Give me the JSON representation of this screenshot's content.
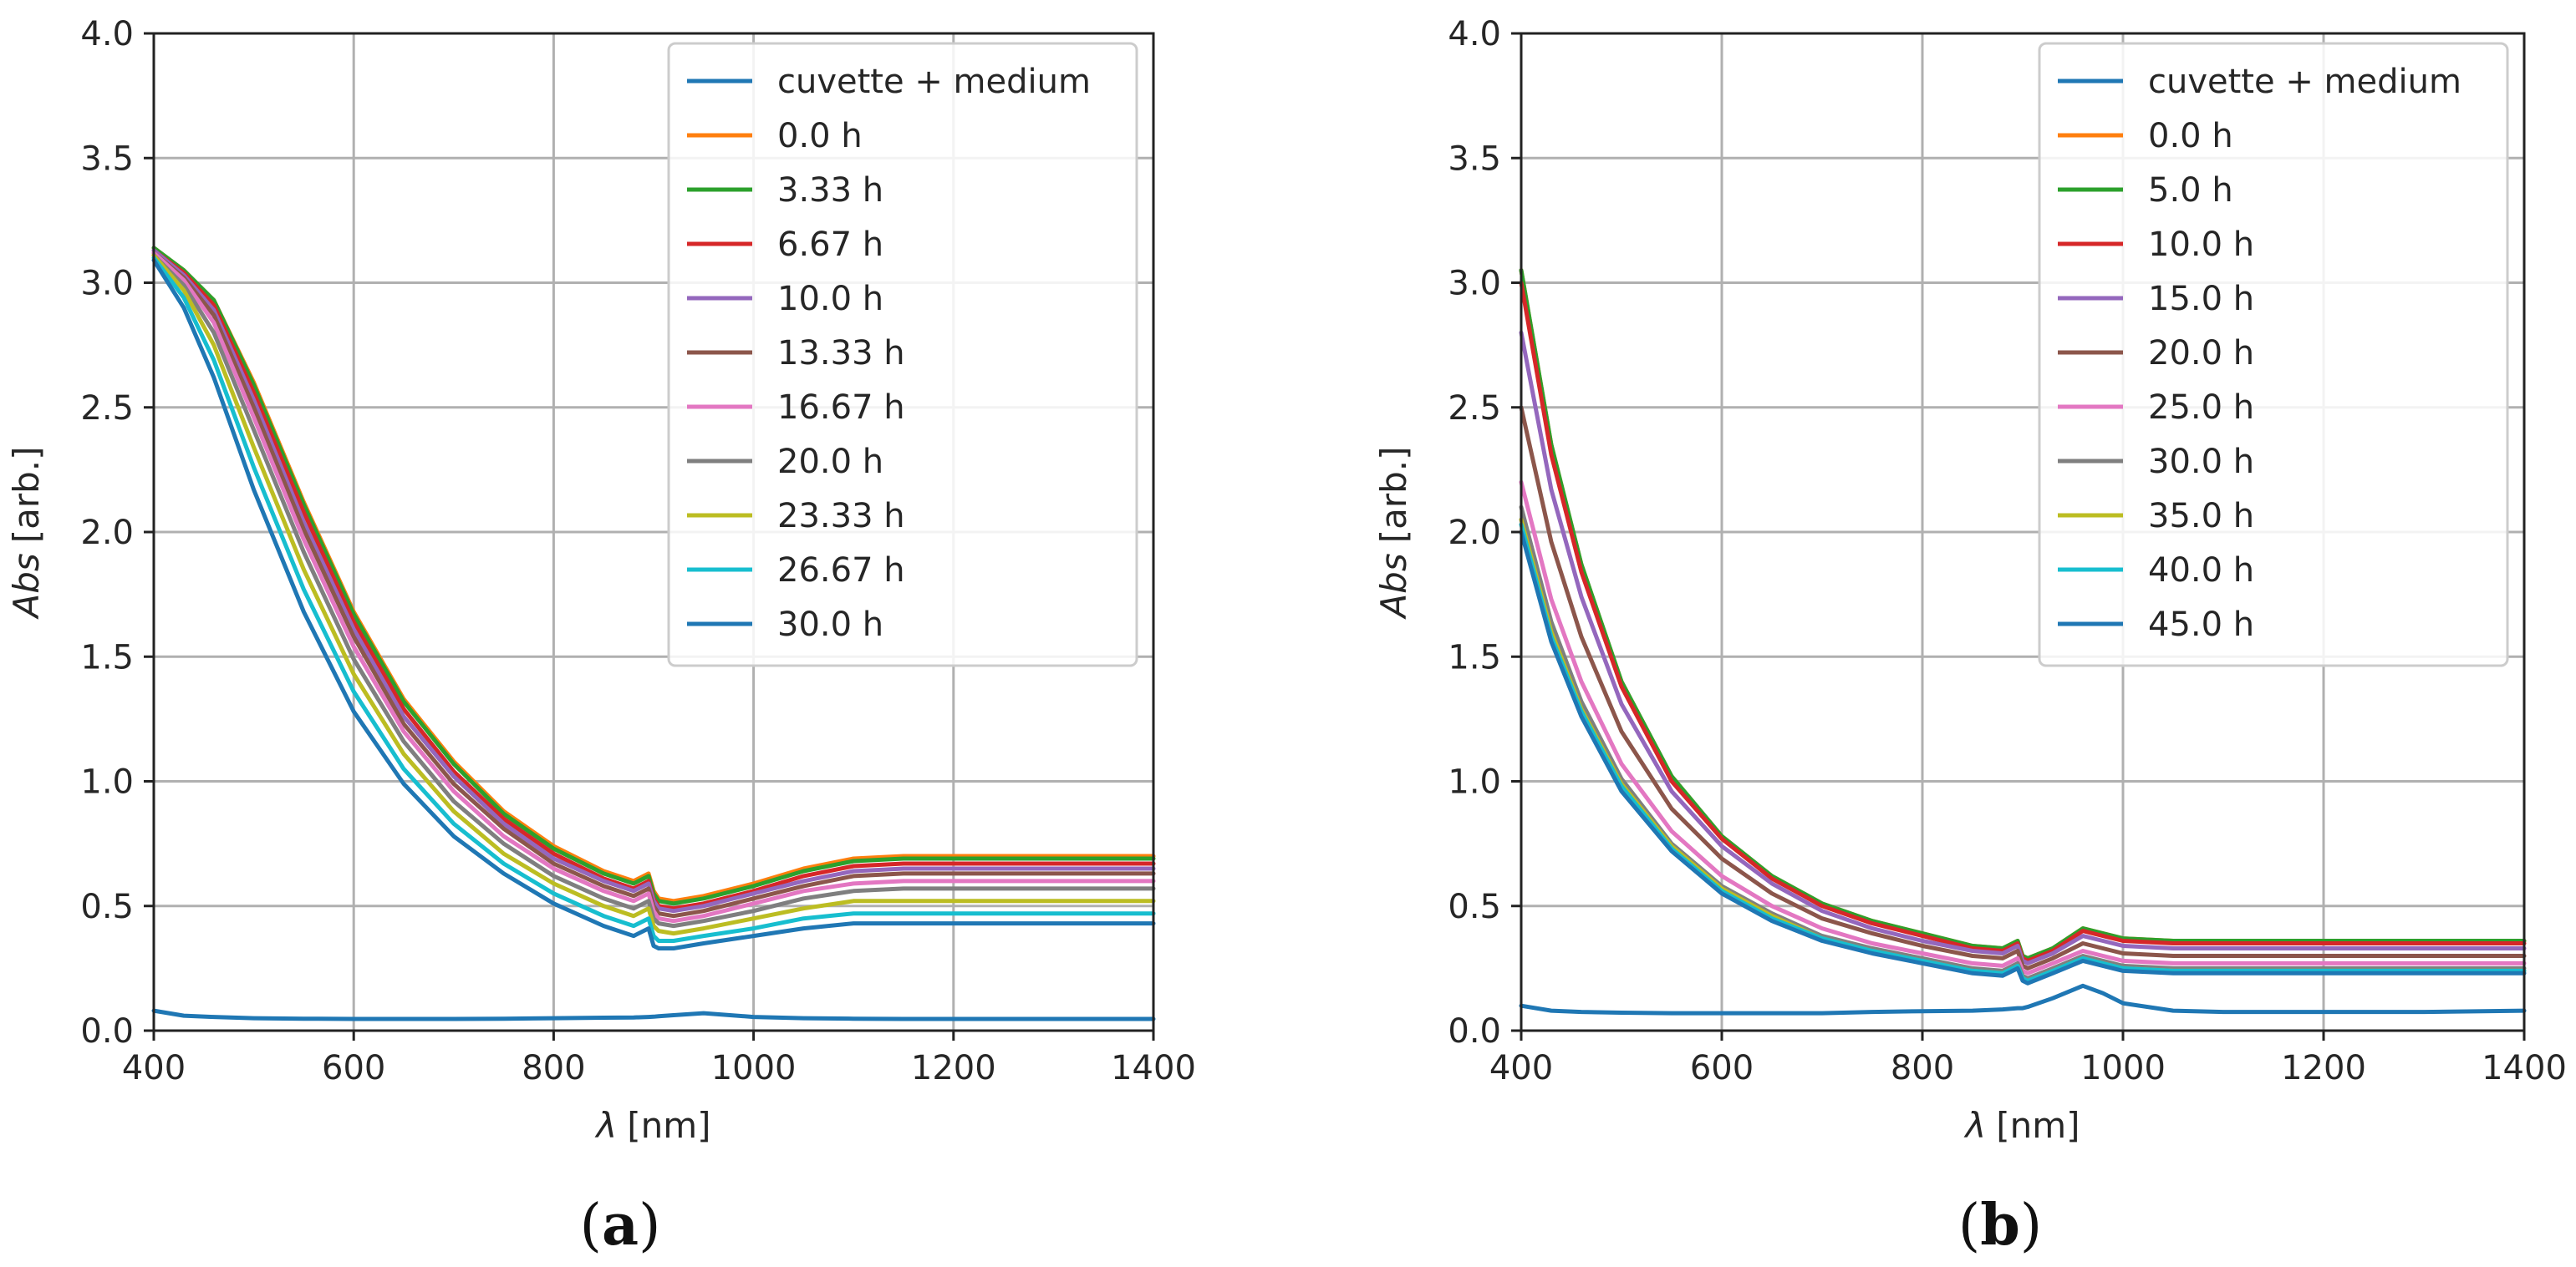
{
  "figure": {
    "panel_labels": [
      {
        "open": "(",
        "letter": "a",
        "close": ")"
      },
      {
        "open": "(",
        "letter": "b",
        "close": ")"
      }
    ]
  },
  "chart_data": [
    {
      "type": "line",
      "panel": "a",
      "title": "",
      "xlabel_symbol": "λ",
      "xlabel_unit": "[nm]",
      "ylabel_symbol": "Abs",
      "ylabel_unit": "[arb.]",
      "xlim": [
        400,
        1400
      ],
      "ylim": [
        0,
        4.0
      ],
      "xticks": [
        400,
        600,
        800,
        1000,
        1200,
        1400
      ],
      "xtick_labels": [
        "400",
        "600",
        "800",
        "1000",
        "1200",
        "1400"
      ],
      "yticks": [
        0,
        0.5,
        1.0,
        1.5,
        2.0,
        2.5,
        3.0,
        3.5,
        4.0
      ],
      "ytick_labels": [
        "0.0",
        "0.5",
        "1.0",
        "1.5",
        "2.0",
        "2.5",
        "3.0",
        "3.5",
        "4.0"
      ],
      "grid": true,
      "legend_position": "top-right",
      "x": [
        400,
        430,
        460,
        500,
        550,
        600,
        650,
        700,
        750,
        800,
        850,
        880,
        895,
        900,
        905,
        920,
        950,
        1000,
        1050,
        1100,
        1150,
        1200,
        1250,
        1300,
        1350,
        1400
      ],
      "series": [
        {
          "name": "cuvette + medium",
          "color": "#1f77b4",
          "values": [
            0.08,
            0.06,
            0.055,
            0.05,
            0.048,
            0.047,
            0.047,
            0.047,
            0.048,
            0.05,
            0.052,
            0.053,
            0.055,
            0.056,
            0.058,
            0.062,
            0.07,
            0.055,
            0.05,
            0.048,
            0.047,
            0.047,
            0.047,
            0.047,
            0.047,
            0.047
          ]
        },
        {
          "name": "0.0 h",
          "color": "#ff7f0e",
          "values": [
            3.14,
            3.05,
            2.93,
            2.6,
            2.12,
            1.68,
            1.33,
            1.08,
            0.88,
            0.74,
            0.64,
            0.6,
            0.63,
            0.56,
            0.53,
            0.52,
            0.54,
            0.59,
            0.65,
            0.69,
            0.7,
            0.7,
            0.7,
            0.7,
            0.7,
            0.7
          ]
        },
        {
          "name": "3.33 h",
          "color": "#2ca02c",
          "values": [
            3.14,
            3.05,
            2.93,
            2.59,
            2.11,
            1.67,
            1.32,
            1.07,
            0.87,
            0.73,
            0.63,
            0.59,
            0.62,
            0.55,
            0.52,
            0.51,
            0.53,
            0.58,
            0.64,
            0.68,
            0.69,
            0.69,
            0.69,
            0.69,
            0.69,
            0.69
          ]
        },
        {
          "name": "6.67 h",
          "color": "#d62728",
          "values": [
            3.13,
            3.04,
            2.91,
            2.56,
            2.08,
            1.64,
            1.29,
            1.04,
            0.85,
            0.71,
            0.61,
            0.57,
            0.6,
            0.53,
            0.5,
            0.49,
            0.51,
            0.56,
            0.62,
            0.66,
            0.67,
            0.67,
            0.67,
            0.67,
            0.67,
            0.67
          ]
        },
        {
          "name": "10.0 h",
          "color": "#9467bd",
          "values": [
            3.13,
            3.03,
            2.89,
            2.53,
            2.04,
            1.61,
            1.26,
            1.02,
            0.83,
            0.69,
            0.6,
            0.56,
            0.59,
            0.52,
            0.49,
            0.48,
            0.5,
            0.55,
            0.6,
            0.64,
            0.65,
            0.65,
            0.65,
            0.65,
            0.65,
            0.65
          ]
        },
        {
          "name": "13.33 h",
          "color": "#8c564b",
          "values": [
            3.12,
            3.02,
            2.87,
            2.5,
            2.01,
            1.58,
            1.23,
            0.99,
            0.81,
            0.67,
            0.58,
            0.54,
            0.57,
            0.5,
            0.47,
            0.46,
            0.48,
            0.53,
            0.58,
            0.62,
            0.63,
            0.63,
            0.63,
            0.63,
            0.63,
            0.63
          ]
        },
        {
          "name": "16.67 h",
          "color": "#e377c2",
          "values": [
            3.12,
            3.01,
            2.84,
            2.46,
            1.97,
            1.54,
            1.2,
            0.96,
            0.78,
            0.65,
            0.56,
            0.52,
            0.55,
            0.48,
            0.45,
            0.44,
            0.46,
            0.51,
            0.56,
            0.59,
            0.6,
            0.6,
            0.6,
            0.6,
            0.6,
            0.6
          ]
        },
        {
          "name": "20.0 h",
          "color": "#7f7f7f",
          "values": [
            3.11,
            2.99,
            2.8,
            2.41,
            1.92,
            1.49,
            1.16,
            0.92,
            0.75,
            0.62,
            0.53,
            0.49,
            0.52,
            0.45,
            0.43,
            0.42,
            0.44,
            0.48,
            0.53,
            0.56,
            0.57,
            0.57,
            0.57,
            0.57,
            0.57,
            0.57
          ]
        },
        {
          "name": "23.33 h",
          "color": "#bcbd22",
          "values": [
            3.11,
            2.97,
            2.75,
            2.34,
            1.85,
            1.43,
            1.11,
            0.88,
            0.71,
            0.59,
            0.5,
            0.46,
            0.49,
            0.42,
            0.4,
            0.39,
            0.41,
            0.45,
            0.49,
            0.52,
            0.52,
            0.52,
            0.52,
            0.52,
            0.52,
            0.52
          ]
        },
        {
          "name": "26.67 h",
          "color": "#17becf",
          "values": [
            3.1,
            2.94,
            2.69,
            2.26,
            1.77,
            1.36,
            1.05,
            0.83,
            0.67,
            0.55,
            0.46,
            0.42,
            0.45,
            0.38,
            0.36,
            0.36,
            0.38,
            0.41,
            0.45,
            0.47,
            0.47,
            0.47,
            0.47,
            0.47,
            0.47,
            0.47
          ]
        },
        {
          "name": "30.0 h",
          "color": "#1f77b4",
          "values": [
            3.09,
            2.9,
            2.62,
            2.17,
            1.68,
            1.28,
            0.99,
            0.78,
            0.63,
            0.51,
            0.42,
            0.38,
            0.41,
            0.34,
            0.33,
            0.33,
            0.35,
            0.38,
            0.41,
            0.43,
            0.43,
            0.43,
            0.43,
            0.43,
            0.43,
            0.43
          ]
        }
      ]
    },
    {
      "type": "line",
      "panel": "b",
      "title": "",
      "xlabel_symbol": "λ",
      "xlabel_unit": "[nm]",
      "ylabel_symbol": "Abs",
      "ylabel_unit": "[arb.]",
      "xlim": [
        400,
        1400
      ],
      "ylim": [
        0,
        4.0
      ],
      "xticks": [
        400,
        600,
        800,
        1000,
        1200,
        1400
      ],
      "xtick_labels": [
        "400",
        "600",
        "800",
        "1000",
        "1200",
        "1400"
      ],
      "yticks": [
        0,
        0.5,
        1.0,
        1.5,
        2.0,
        2.5,
        3.0,
        3.5,
        4.0
      ],
      "ytick_labels": [
        "0.0",
        "0.5",
        "1.0",
        "1.5",
        "2.0",
        "2.5",
        "3.0",
        "3.5",
        "4.0"
      ],
      "grid": true,
      "legend_position": "top-right",
      "x": [
        400,
        430,
        460,
        500,
        550,
        600,
        650,
        700,
        750,
        800,
        850,
        880,
        895,
        900,
        905,
        930,
        960,
        980,
        1000,
        1050,
        1100,
        1200,
        1300,
        1400
      ],
      "series": [
        {
          "name": "cuvette + medium",
          "color": "#1f77b4",
          "values": [
            0.1,
            0.08,
            0.075,
            0.072,
            0.07,
            0.07,
            0.07,
            0.07,
            0.075,
            0.078,
            0.08,
            0.085,
            0.09,
            0.09,
            0.095,
            0.13,
            0.18,
            0.15,
            0.11,
            0.08,
            0.075,
            0.075,
            0.075,
            0.08
          ]
        },
        {
          "name": "0.0 h",
          "color": "#ff7f0e",
          "values": [
            3.05,
            2.35,
            1.87,
            1.4,
            1.02,
            0.78,
            0.62,
            0.51,
            0.44,
            0.39,
            0.34,
            0.33,
            0.36,
            0.3,
            0.29,
            0.33,
            0.41,
            0.39,
            0.37,
            0.36,
            0.36,
            0.36,
            0.36,
            0.36
          ]
        },
        {
          "name": "5.0 h",
          "color": "#2ca02c",
          "values": [
            3.05,
            2.35,
            1.87,
            1.4,
            1.02,
            0.78,
            0.62,
            0.51,
            0.44,
            0.39,
            0.34,
            0.33,
            0.36,
            0.3,
            0.29,
            0.33,
            0.41,
            0.39,
            0.37,
            0.36,
            0.36,
            0.36,
            0.36,
            0.36
          ]
        },
        {
          "name": "10.0 h",
          "color": "#d62728",
          "values": [
            3.0,
            2.31,
            1.84,
            1.38,
            1.0,
            0.77,
            0.61,
            0.5,
            0.43,
            0.38,
            0.33,
            0.32,
            0.35,
            0.29,
            0.28,
            0.32,
            0.4,
            0.38,
            0.36,
            0.35,
            0.35,
            0.35,
            0.35,
            0.35
          ]
        },
        {
          "name": "15.0 h",
          "color": "#9467bd",
          "values": [
            2.8,
            2.17,
            1.74,
            1.31,
            0.96,
            0.74,
            0.59,
            0.48,
            0.41,
            0.36,
            0.32,
            0.31,
            0.34,
            0.28,
            0.27,
            0.31,
            0.38,
            0.36,
            0.34,
            0.33,
            0.33,
            0.33,
            0.33,
            0.33
          ]
        },
        {
          "name": "20.0 h",
          "color": "#8c564b",
          "values": [
            2.5,
            1.96,
            1.58,
            1.2,
            0.89,
            0.69,
            0.55,
            0.45,
            0.39,
            0.34,
            0.3,
            0.29,
            0.32,
            0.26,
            0.25,
            0.29,
            0.35,
            0.33,
            0.31,
            0.3,
            0.3,
            0.3,
            0.3,
            0.3
          ]
        },
        {
          "name": "25.0 h",
          "color": "#e377c2",
          "values": [
            2.2,
            1.73,
            1.4,
            1.07,
            0.8,
            0.62,
            0.5,
            0.41,
            0.35,
            0.31,
            0.27,
            0.26,
            0.29,
            0.24,
            0.23,
            0.27,
            0.32,
            0.3,
            0.28,
            0.27,
            0.27,
            0.27,
            0.27,
            0.27
          ]
        },
        {
          "name": "30.0 h",
          "color": "#7f7f7f",
          "values": [
            2.1,
            1.64,
            1.32,
            1.01,
            0.75,
            0.58,
            0.47,
            0.38,
            0.33,
            0.29,
            0.25,
            0.24,
            0.27,
            0.22,
            0.21,
            0.25,
            0.3,
            0.28,
            0.26,
            0.25,
            0.25,
            0.25,
            0.25,
            0.25
          ]
        },
        {
          "name": "35.0 h",
          "color": "#bcbd22",
          "values": [
            2.05,
            1.6,
            1.29,
            0.99,
            0.74,
            0.57,
            0.46,
            0.37,
            0.32,
            0.28,
            0.24,
            0.23,
            0.26,
            0.21,
            0.2,
            0.24,
            0.29,
            0.27,
            0.25,
            0.24,
            0.24,
            0.24,
            0.24,
            0.24
          ]
        },
        {
          "name": "40.0 h",
          "color": "#17becf",
          "values": [
            2.03,
            1.58,
            1.28,
            0.98,
            0.73,
            0.56,
            0.45,
            0.37,
            0.32,
            0.28,
            0.24,
            0.23,
            0.26,
            0.21,
            0.2,
            0.24,
            0.29,
            0.27,
            0.25,
            0.24,
            0.24,
            0.24,
            0.24,
            0.24
          ]
        },
        {
          "name": "45.0 h",
          "color": "#1f77b4",
          "values": [
            2.0,
            1.56,
            1.26,
            0.96,
            0.72,
            0.55,
            0.44,
            0.36,
            0.31,
            0.27,
            0.23,
            0.22,
            0.25,
            0.2,
            0.19,
            0.23,
            0.28,
            0.26,
            0.24,
            0.23,
            0.23,
            0.23,
            0.23,
            0.23
          ]
        }
      ]
    }
  ]
}
